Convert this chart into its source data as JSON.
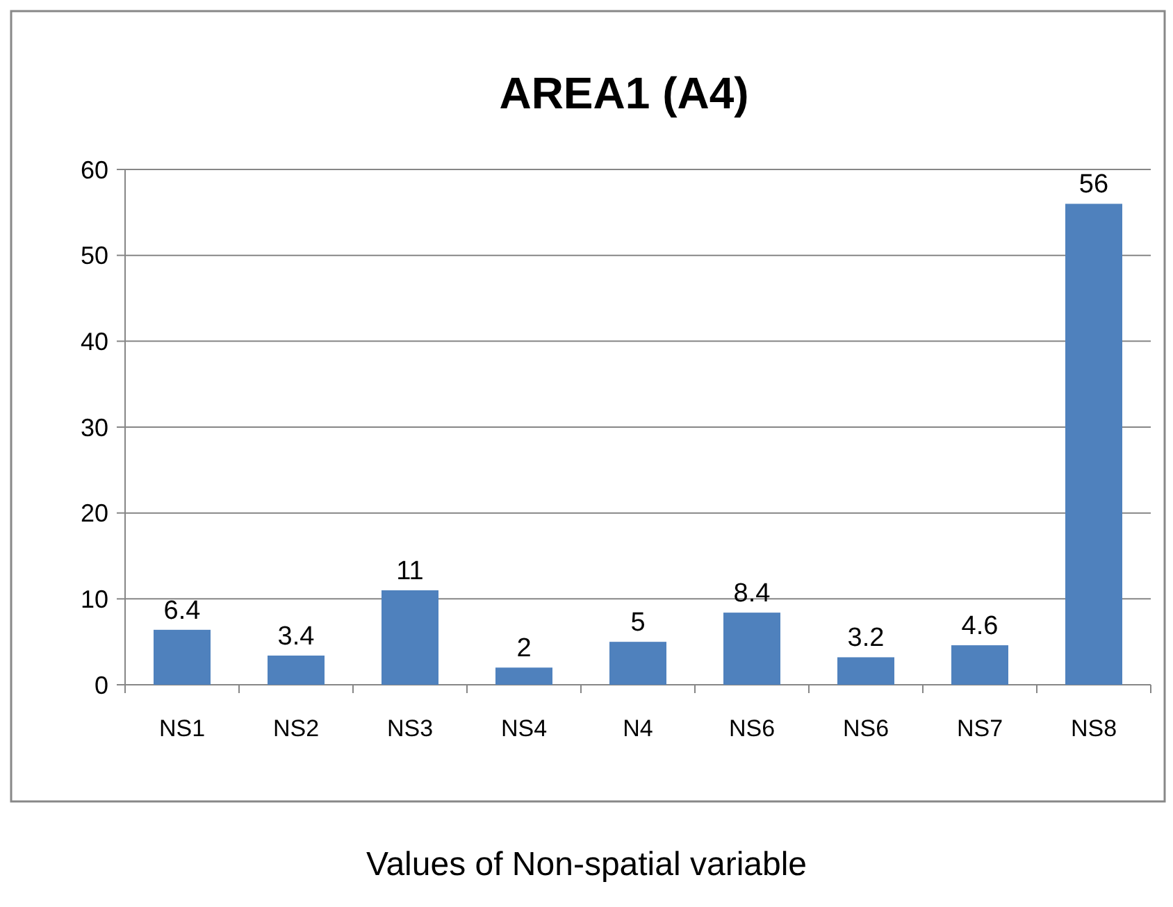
{
  "chart_data": {
    "type": "bar",
    "title": "AREA1 (A4)",
    "xlabel": "Values of Non-spatial variable",
    "categories": [
      "NS1",
      "NS2",
      "NS3",
      "NS4",
      "N4",
      "NS6",
      "NS6",
      "NS7",
      "NS8"
    ],
    "values": [
      6.4,
      3.4,
      11,
      2,
      5,
      8.4,
      3.2,
      4.6,
      56
    ],
    "color": "#4f81bd",
    "ylim": [
      0,
      60
    ],
    "yticks": [
      0,
      10,
      20,
      30,
      40,
      50,
      60
    ],
    "grid": "y",
    "data_labels": true
  }
}
